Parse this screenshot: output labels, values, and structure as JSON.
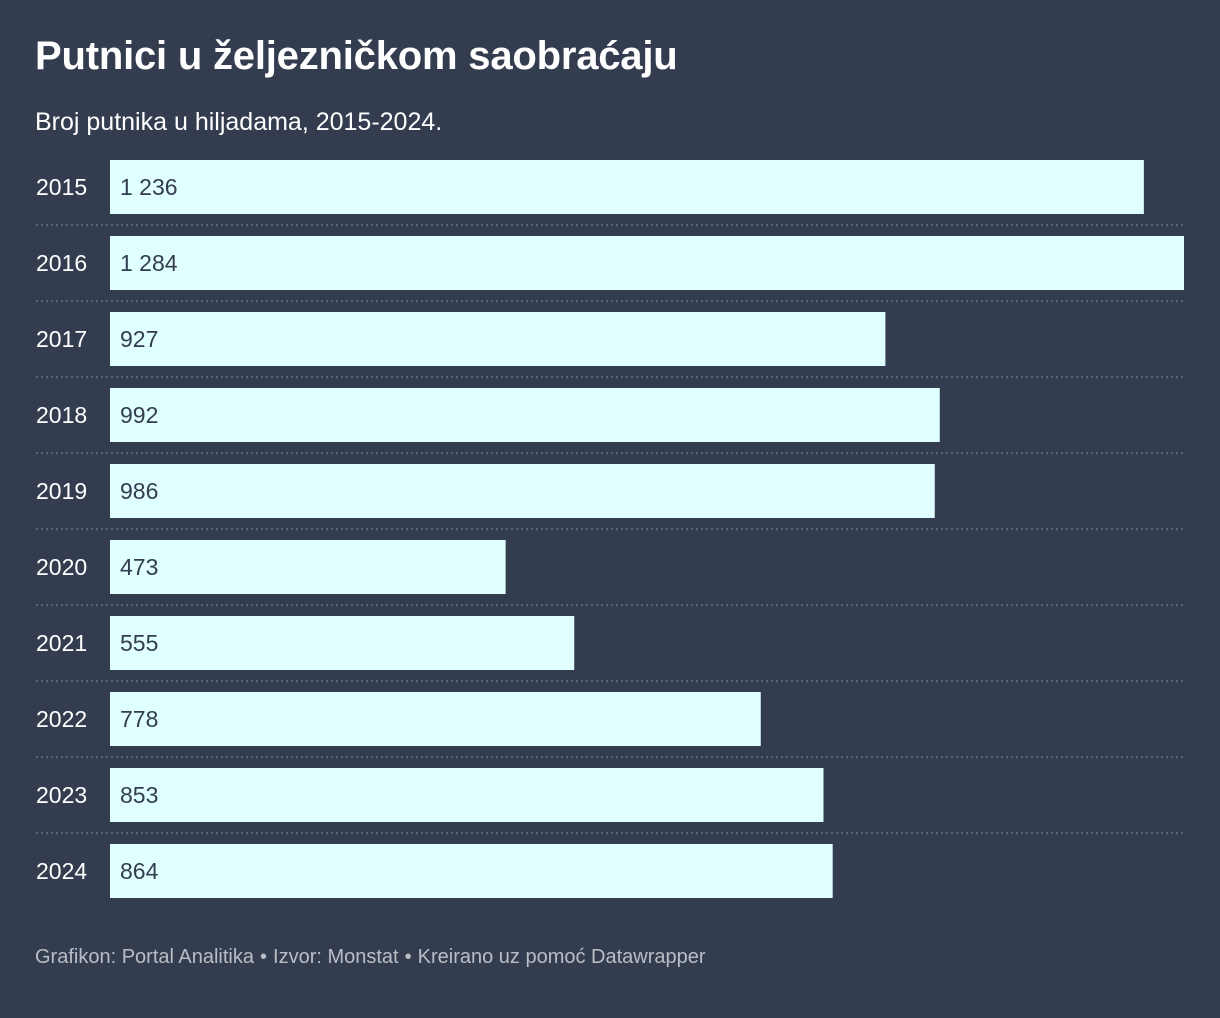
{
  "title": "Putnici u željezničkom saobraćaju",
  "subtitle": "Broj putnika u hiljadama, 2015-2024.",
  "footer": {
    "credit": "Grafikon: Portal Analitika",
    "source": "Izvor: Monstat",
    "tool": "Kreirano uz pomoć Datawrapper",
    "separator": "•"
  },
  "colors": {
    "background": "#333d4f",
    "bar": "#e0ffff",
    "bar_label": "#333d4f",
    "category_label": "#ffffff",
    "separator_line": "#6b7383"
  },
  "chart_data": {
    "type": "bar",
    "orientation": "horizontal",
    "categories": [
      "2015",
      "2016",
      "2017",
      "2018",
      "2019",
      "2020",
      "2021",
      "2022",
      "2023",
      "2024"
    ],
    "values": [
      1236,
      1284,
      927,
      992,
      986,
      473,
      555,
      778,
      853,
      864
    ],
    "value_labels": [
      "1 236",
      "1 284",
      "927",
      "992",
      "986",
      "473",
      "555",
      "778",
      "853",
      "864"
    ],
    "xlim": [
      0,
      1284
    ],
    "grid": false,
    "legend": "none"
  }
}
